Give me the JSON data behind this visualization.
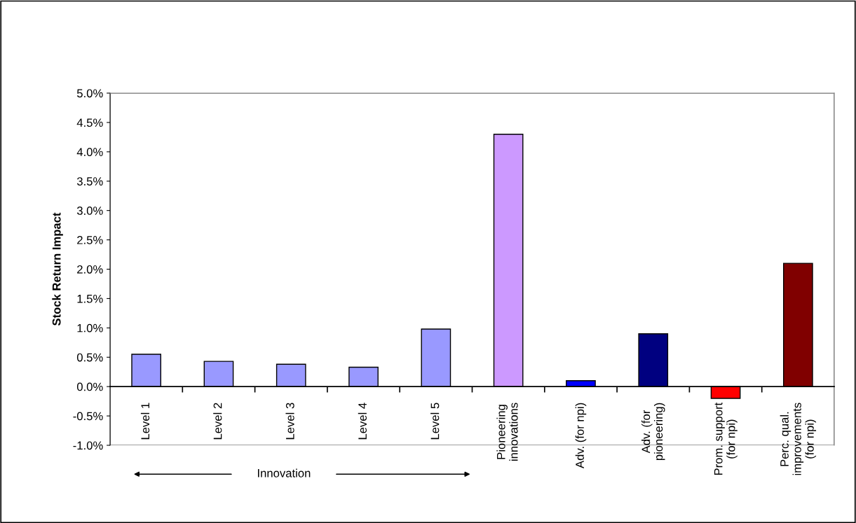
{
  "chart_data": {
    "type": "bar",
    "ylabel": "Stock Return Impact",
    "categories": [
      "Level 1",
      "Level 2",
      "Level 3",
      "Level 4",
      "Level 5",
      "Pioneering\ninnovations",
      "Adv. (for npi)",
      "Adv. (for\npioneering)",
      "Prom. support\n(for npi)",
      "Perc. qual.\nimprovements\n(for npi)"
    ],
    "values": [
      0.55,
      0.43,
      0.38,
      0.33,
      0.98,
      4.3,
      0.1,
      0.9,
      -0.2,
      2.1
    ],
    "colors": [
      "#9999ff",
      "#9999ff",
      "#9999ff",
      "#9999ff",
      "#9999ff",
      "#cc99ff",
      "#0000ff",
      "#000080",
      "#ff0000",
      "#800000"
    ],
    "ylim": [
      -1.0,
      5.0
    ],
    "yticks": [
      {
        "value": -1.0,
        "label": "-1.0%"
      },
      {
        "value": -0.5,
        "label": "-0.5%"
      },
      {
        "value": 0.0,
        "label": "0.0%"
      },
      {
        "value": 0.5,
        "label": "0.5%"
      },
      {
        "value": 1.0,
        "label": "1.0%"
      },
      {
        "value": 1.5,
        "label": "1.5%"
      },
      {
        "value": 2.0,
        "label": "2.0%"
      },
      {
        "value": 2.5,
        "label": "2.5%"
      },
      {
        "value": 3.0,
        "label": "3.0%"
      },
      {
        "value": 3.5,
        "label": "3.5%"
      },
      {
        "value": 4.0,
        "label": "4.0%"
      },
      {
        "value": 4.5,
        "label": "4.5%"
      },
      {
        "value": 5.0,
        "label": "5.0%"
      }
    ],
    "annotations": [
      "Innovation"
    ]
  }
}
